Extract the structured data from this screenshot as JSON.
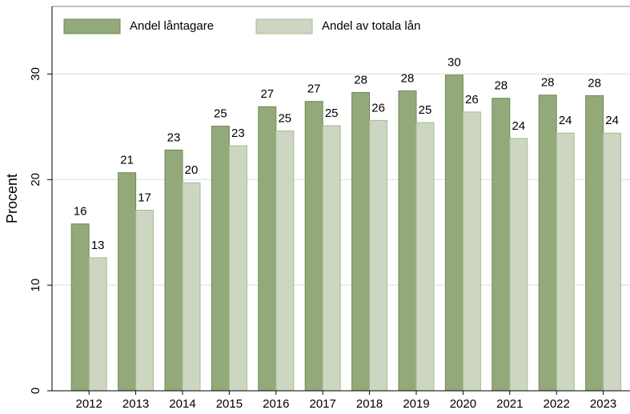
{
  "chart_data": {
    "type": "bar",
    "categories": [
      "2012",
      "2013",
      "2014",
      "2015",
      "2016",
      "2017",
      "2018",
      "2019",
      "2020",
      "2021",
      "2022",
      "2023"
    ],
    "series": [
      {
        "name": "Andel låntagare",
        "color": "#93a97a",
        "values": [
          15.8,
          20.65,
          22.8,
          25.06,
          26.9,
          27.4,
          28.25,
          28.4,
          29.9,
          27.7,
          28.0,
          27.95
        ],
        "value_labels": [
          "16",
          "21",
          "23",
          "25",
          "27",
          "27",
          "28",
          "28",
          "30",
          "28",
          "28",
          "28"
        ]
      },
      {
        "name": "Andel av totala lån",
        "color": "#ccd6c0",
        "values": [
          12.6,
          17.1,
          19.7,
          23.2,
          24.6,
          25.1,
          25.6,
          25.4,
          26.4,
          23.9,
          24.4,
          24.4
        ],
        "value_labels": [
          "13",
          "17",
          "20",
          "23",
          "25",
          "25",
          "26",
          "25",
          "26",
          "24",
          "24",
          "24"
        ]
      }
    ],
    "y_label": "Procent",
    "ylim": [
      0,
      36.4
    ],
    "yticks": [
      0,
      10,
      20,
      30
    ],
    "grid": true,
    "legend": "top-left"
  }
}
